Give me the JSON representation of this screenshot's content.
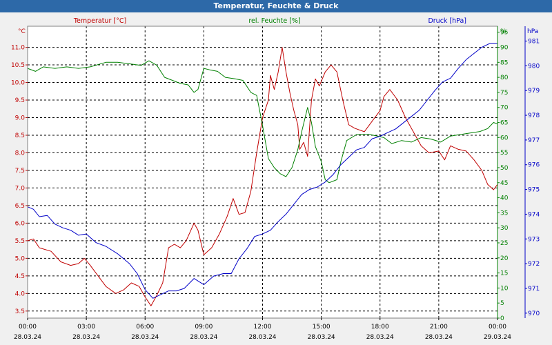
{
  "window": {
    "title": "Temperatur, Feuchte & Druck"
  },
  "chart_data": {
    "type": "line",
    "colors": {
      "temperature": "#c00000",
      "humidity": "#008000",
      "pressure": "#0000c8",
      "background": "#ffffff",
      "grid": "#000000"
    },
    "grid": true,
    "axes": {
      "left": {
        "label": "Temperatur [°C]",
        "unit": "°C",
        "range": [
          3.3,
          11.6
        ],
        "ticks": [
          "3.5",
          "4.0",
          "4.5",
          "5.0",
          "5.5",
          "6.0",
          "6.5",
          "7.0",
          "7.5",
          "8.0",
          "8.5",
          "9.0",
          "9.5",
          "10.0",
          "10.5",
          "11.0"
        ]
      },
      "right1": {
        "label": "rel. Feuchte [%]",
        "unit": "%",
        "range": [
          0,
          97
        ],
        "ticks": [
          "0",
          "5",
          "10",
          "15",
          "20",
          "25",
          "30",
          "35",
          "40",
          "45",
          "50",
          "55",
          "60",
          "65",
          "70",
          "75",
          "80",
          "85",
          "90",
          "95"
        ]
      },
      "right2": {
        "label": "Druck [hPa]",
        "unit": "hPa",
        "range": [
          969.8,
          981.6
        ],
        "ticks": [
          "970",
          "971",
          "972",
          "973",
          "974",
          "975",
          "976",
          "977",
          "978",
          "979",
          "980",
          "981"
        ]
      },
      "x": {
        "range": [
          0,
          24
        ],
        "ticks": [
          {
            "time": "00:00",
            "date": "28.03.24"
          },
          {
            "time": "03:00",
            "date": "28.03.24"
          },
          {
            "time": "06:00",
            "date": "28.03.24"
          },
          {
            "time": "09:00",
            "date": "28.03.24"
          },
          {
            "time": "12:00",
            "date": "28.03.24"
          },
          {
            "time": "15:00",
            "date": "28.03.24"
          },
          {
            "time": "18:00",
            "date": "28.03.24"
          },
          {
            "time": "21:00",
            "date": "28.03.24"
          },
          {
            "time": "00:00",
            "date": "29.03.24"
          }
        ]
      }
    },
    "series": [
      {
        "name": "Temperatur [°C]",
        "axis": "left",
        "points": [
          [
            0,
            5.5
          ],
          [
            0.3,
            5.55
          ],
          [
            0.6,
            5.3
          ],
          [
            1.2,
            5.2
          ],
          [
            1.7,
            4.9
          ],
          [
            2.2,
            4.8
          ],
          [
            2.6,
            4.85
          ],
          [
            2.9,
            5.0
          ],
          [
            3.2,
            4.8
          ],
          [
            3.6,
            4.5
          ],
          [
            4.0,
            4.2
          ],
          [
            4.5,
            4.0
          ],
          [
            4.9,
            4.1
          ],
          [
            5.3,
            4.3
          ],
          [
            5.7,
            4.2
          ],
          [
            6.0,
            3.9
          ],
          [
            6.3,
            3.65
          ],
          [
            6.6,
            3.95
          ],
          [
            6.9,
            4.3
          ],
          [
            7.2,
            5.3
          ],
          [
            7.5,
            5.4
          ],
          [
            7.8,
            5.3
          ],
          [
            8.1,
            5.5
          ],
          [
            8.5,
            6.0
          ],
          [
            8.7,
            5.8
          ],
          [
            9.0,
            5.1
          ],
          [
            9.4,
            5.3
          ],
          [
            9.8,
            5.7
          ],
          [
            10.2,
            6.2
          ],
          [
            10.5,
            6.7
          ],
          [
            10.8,
            6.25
          ],
          [
            11.1,
            6.3
          ],
          [
            11.4,
            6.9
          ],
          [
            11.7,
            8.0
          ],
          [
            12.0,
            9.0
          ],
          [
            12.3,
            9.5
          ],
          [
            12.4,
            10.2
          ],
          [
            12.6,
            9.8
          ],
          [
            12.8,
            10.3
          ],
          [
            13.0,
            11.0
          ],
          [
            13.2,
            10.3
          ],
          [
            13.4,
            9.7
          ],
          [
            13.6,
            9.2
          ],
          [
            13.8,
            8.8
          ],
          [
            13.9,
            8.1
          ],
          [
            14.1,
            8.3
          ],
          [
            14.3,
            7.9
          ],
          [
            14.5,
            9.5
          ],
          [
            14.7,
            10.1
          ],
          [
            14.9,
            9.9
          ],
          [
            15.2,
            10.3
          ],
          [
            15.5,
            10.5
          ],
          [
            15.8,
            10.3
          ],
          [
            16.1,
            9.5
          ],
          [
            16.4,
            8.8
          ],
          [
            16.7,
            8.7
          ],
          [
            17.2,
            8.6
          ],
          [
            17.6,
            8.9
          ],
          [
            18.0,
            9.2
          ],
          [
            18.2,
            9.6
          ],
          [
            18.5,
            9.8
          ],
          [
            18.9,
            9.5
          ],
          [
            19.3,
            9.0
          ],
          [
            19.7,
            8.6
          ],
          [
            20.1,
            8.2
          ],
          [
            20.5,
            8.0
          ],
          [
            21.0,
            8.05
          ],
          [
            21.3,
            7.8
          ],
          [
            21.6,
            8.2
          ],
          [
            22.0,
            8.1
          ],
          [
            22.4,
            8.05
          ],
          [
            22.8,
            7.8
          ],
          [
            23.2,
            7.5
          ],
          [
            23.5,
            7.1
          ],
          [
            23.8,
            6.95
          ],
          [
            24.0,
            7.1
          ]
        ]
      },
      {
        "name": "rel. Feuchte [%]",
        "axis": "right1",
        "points": [
          [
            0,
            83
          ],
          [
            0.4,
            82
          ],
          [
            0.8,
            83.5
          ],
          [
            1.4,
            83
          ],
          [
            2.0,
            83.5
          ],
          [
            2.6,
            83
          ],
          [
            3.2,
            83.5
          ],
          [
            4.0,
            85
          ],
          [
            4.6,
            85
          ],
          [
            5.2,
            84.5
          ],
          [
            5.8,
            84
          ],
          [
            6.2,
            85.5
          ],
          [
            6.6,
            84
          ],
          [
            7.0,
            80
          ],
          [
            7.4,
            79
          ],
          [
            7.8,
            78
          ],
          [
            8.2,
            77.5
          ],
          [
            8.5,
            75
          ],
          [
            8.7,
            76
          ],
          [
            9.0,
            83
          ],
          [
            9.3,
            82.5
          ],
          [
            9.7,
            82
          ],
          [
            10.1,
            80
          ],
          [
            10.6,
            79.5
          ],
          [
            11.0,
            79
          ],
          [
            11.4,
            75
          ],
          [
            11.7,
            74
          ],
          [
            12.0,
            64
          ],
          [
            12.3,
            53
          ],
          [
            12.6,
            50
          ],
          [
            12.9,
            48
          ],
          [
            13.2,
            47
          ],
          [
            13.5,
            50
          ],
          [
            13.8,
            56
          ],
          [
            14.0,
            62
          ],
          [
            14.3,
            70
          ],
          [
            14.5,
            65
          ],
          [
            14.7,
            57
          ],
          [
            15.0,
            52
          ],
          [
            15.2,
            46
          ],
          [
            15.4,
            45
          ],
          [
            15.8,
            46
          ],
          [
            16.0,
            52
          ],
          [
            16.3,
            59
          ],
          [
            16.8,
            61
          ],
          [
            17.5,
            61
          ],
          [
            18.2,
            60
          ],
          [
            18.6,
            58
          ],
          [
            19.1,
            59
          ],
          [
            19.6,
            58.5
          ],
          [
            20.1,
            60
          ],
          [
            20.6,
            59.5
          ],
          [
            21.1,
            58.5
          ],
          [
            21.6,
            60.5
          ],
          [
            22.1,
            61
          ],
          [
            22.6,
            61.5
          ],
          [
            23.1,
            62
          ],
          [
            23.5,
            63
          ],
          [
            23.8,
            65
          ],
          [
            24.0,
            64.5
          ]
        ]
      },
      {
        "name": "Druck [hPa]",
        "axis": "right2",
        "points": [
          [
            0,
            974.3
          ],
          [
            0.3,
            974.2
          ],
          [
            0.6,
            973.9
          ],
          [
            1.0,
            973.95
          ],
          [
            1.4,
            973.6
          ],
          [
            1.8,
            973.45
          ],
          [
            2.2,
            973.35
          ],
          [
            2.6,
            973.15
          ],
          [
            3.0,
            973.2
          ],
          [
            3.5,
            972.85
          ],
          [
            4.0,
            972.7
          ],
          [
            4.6,
            972.4
          ],
          [
            5.2,
            972.0
          ],
          [
            5.6,
            971.6
          ],
          [
            6.0,
            970.95
          ],
          [
            6.4,
            970.6
          ],
          [
            6.8,
            970.75
          ],
          [
            7.2,
            970.9
          ],
          [
            7.6,
            970.9
          ],
          [
            8.0,
            971.0
          ],
          [
            8.5,
            971.4
          ],
          [
            9.0,
            971.15
          ],
          [
            9.5,
            971.5
          ],
          [
            10.0,
            971.6
          ],
          [
            10.4,
            971.6
          ],
          [
            10.8,
            972.2
          ],
          [
            11.2,
            972.6
          ],
          [
            11.6,
            973.1
          ],
          [
            12.0,
            973.2
          ],
          [
            12.4,
            973.35
          ],
          [
            12.8,
            973.7
          ],
          [
            13.2,
            974.0
          ],
          [
            13.6,
            974.4
          ],
          [
            14.0,
            974.8
          ],
          [
            14.4,
            975.0
          ],
          [
            14.8,
            975.1
          ],
          [
            15.2,
            975.3
          ],
          [
            15.6,
            975.6
          ],
          [
            16.0,
            976.0
          ],
          [
            16.4,
            976.3
          ],
          [
            16.8,
            976.6
          ],
          [
            17.2,
            976.7
          ],
          [
            17.6,
            977.05
          ],
          [
            18.0,
            977.15
          ],
          [
            18.4,
            977.3
          ],
          [
            18.8,
            977.45
          ],
          [
            19.2,
            977.7
          ],
          [
            19.6,
            977.95
          ],
          [
            20.0,
            978.2
          ],
          [
            20.4,
            978.6
          ],
          [
            20.8,
            979.0
          ],
          [
            21.2,
            979.35
          ],
          [
            21.6,
            979.5
          ],
          [
            22.0,
            979.9
          ],
          [
            22.4,
            980.25
          ],
          [
            22.8,
            980.5
          ],
          [
            23.2,
            980.75
          ],
          [
            23.6,
            980.9
          ],
          [
            24.0,
            980.9
          ]
        ]
      }
    ]
  }
}
